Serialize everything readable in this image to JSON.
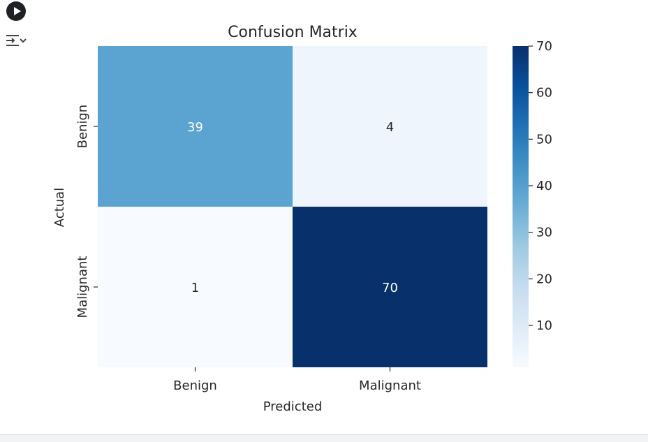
{
  "cell_controls": {
    "run_icon": "play-icon",
    "output_icon": "output-collapse-icon"
  },
  "chart_data": {
    "type": "heatmap",
    "title": "Confusion Matrix",
    "xlabel": "Predicted",
    "ylabel": "Actual",
    "x_categories": [
      "Benign",
      "Malignant"
    ],
    "y_categories": [
      "Benign",
      "Malignant"
    ],
    "values": [
      [
        39,
        4
      ],
      [
        1,
        70
      ]
    ],
    "colormap": "Blues",
    "colorbar": {
      "min": 1,
      "max": 70,
      "ticks": [
        10,
        20,
        30,
        40,
        50,
        60,
        70
      ]
    },
    "colors": {
      "cell_39": "#5ba3d0",
      "cell_4": "#eef5fc",
      "cell_1": "#f7fbff",
      "cell_70": "#08306b"
    },
    "annotation_text": {
      "light": "#ffffff",
      "dark": "#262626"
    }
  }
}
